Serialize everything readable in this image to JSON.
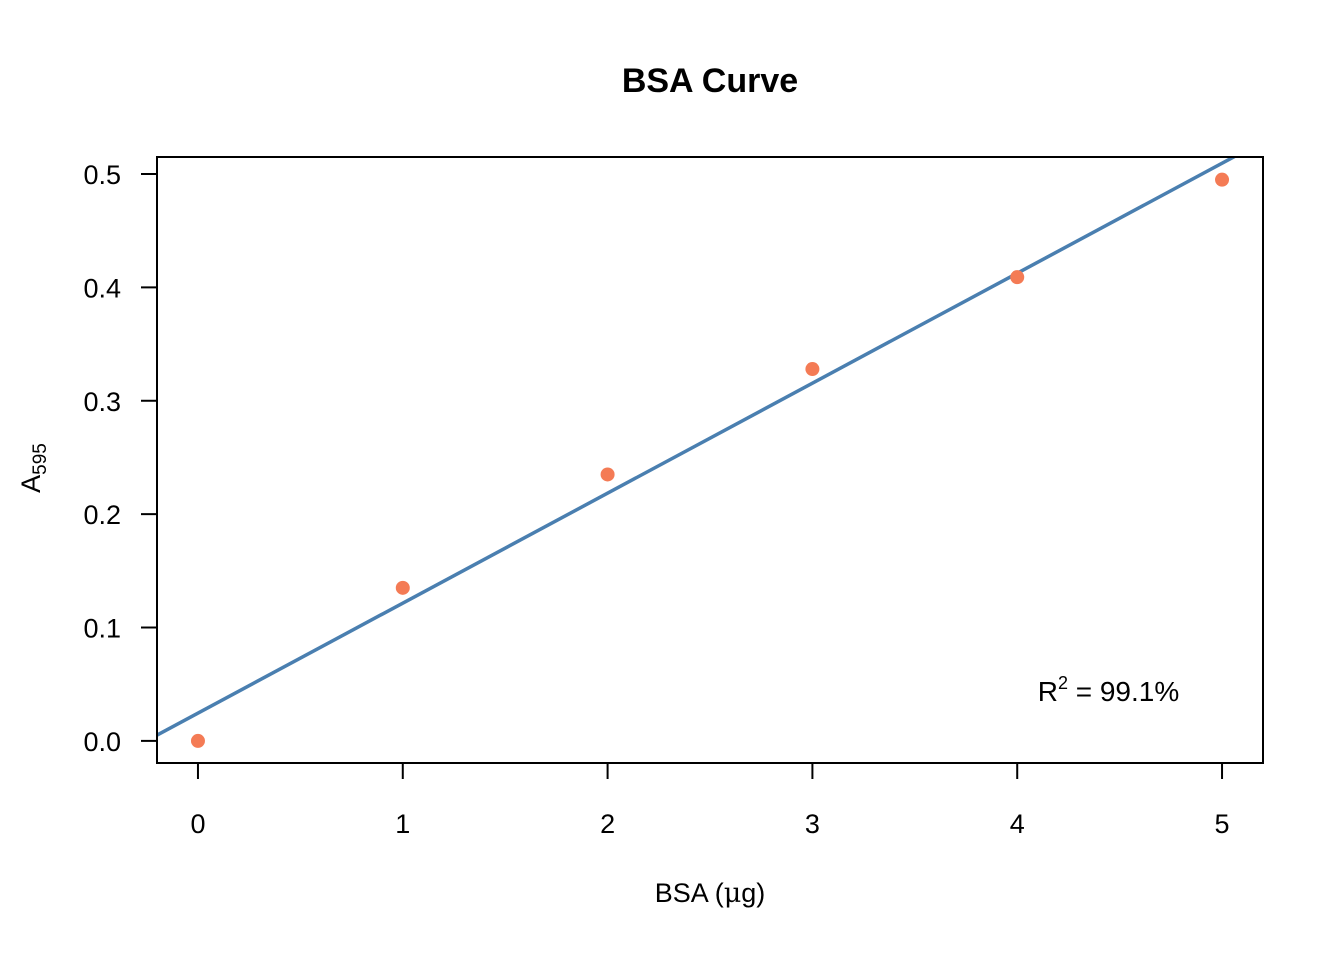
{
  "chart_data": {
    "type": "scatter",
    "title": "BSA Curve",
    "xlabel": {
      "text": "BSA (",
      "mu": "μ",
      "unit": "g)"
    },
    "ylabel": {
      "base": "A",
      "subscript": "595"
    },
    "xlim": [
      -0.2,
      5.2
    ],
    "ylim": [
      -0.0195,
      0.515
    ],
    "xticks": [
      0,
      1,
      2,
      3,
      4,
      5
    ],
    "xtick_labels": [
      "0",
      "1",
      "2",
      "3",
      "4",
      "5"
    ],
    "yticks": [
      0.0,
      0.1,
      0.2,
      0.3,
      0.4,
      0.5
    ],
    "ytick_labels": [
      "0.0",
      "0.1",
      "0.2",
      "0.3",
      "0.4",
      "0.5"
    ],
    "grid": false,
    "legend": "none",
    "series": [
      {
        "type": "scatter",
        "x": [
          0,
          1,
          2,
          3,
          4,
          5
        ],
        "y": [
          0.0,
          0.135,
          0.235,
          0.328,
          0.409,
          0.495
        ],
        "color": "#F47B55"
      }
    ],
    "fit_line": {
      "intercept": 0.0245,
      "slope": 0.097,
      "color": "#4A7FB0"
    },
    "annotation": {
      "base": "R",
      "superscript": "2",
      "value": " = 99.1%",
      "x": 4.1,
      "y": 0.044
    }
  }
}
